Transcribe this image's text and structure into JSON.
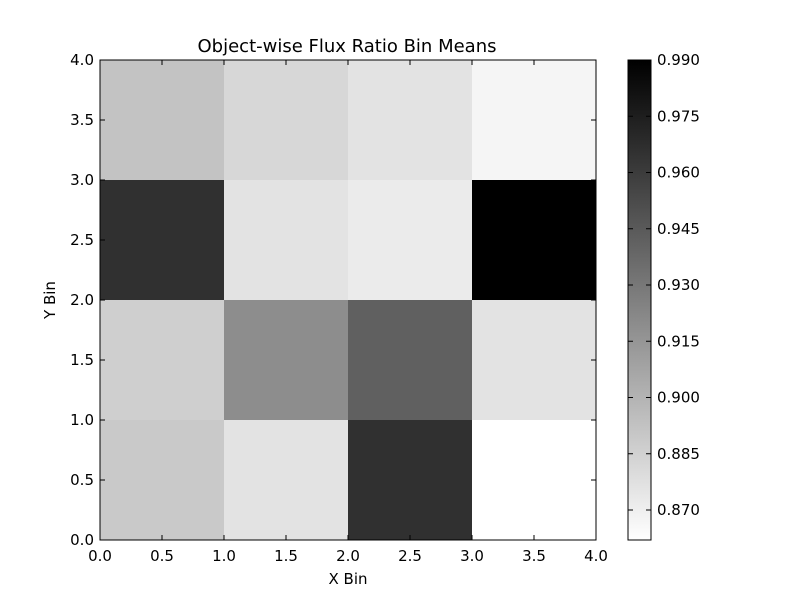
{
  "chart_data": {
    "type": "heatmap",
    "title": "Object-wise Flux Ratio Bin Means",
    "xlabel": "X Bin",
    "ylabel": "Y Bin",
    "xlim": [
      0.0,
      4.0
    ],
    "ylim": [
      0.0,
      4.0
    ],
    "x_ticks": [
      "0.0",
      "0.5",
      "1.0",
      "1.5",
      "2.0",
      "2.5",
      "3.0",
      "3.5",
      "4.0"
    ],
    "y_ticks": [
      "0.0",
      "0.5",
      "1.0",
      "1.5",
      "2.0",
      "2.5",
      "3.0",
      "3.5",
      "4.0"
    ],
    "x_bins": [
      0.5,
      1.5,
      2.5,
      3.5
    ],
    "y_bins": [
      0.5,
      1.5,
      2.5,
      3.5
    ],
    "values": [
      [
        0.889,
        0.876,
        0.966,
        0.862
      ],
      [
        0.886,
        0.919,
        0.942,
        0.876
      ],
      [
        0.966,
        0.876,
        0.872,
        0.99
      ],
      [
        0.892,
        0.882,
        0.876,
        0.867
      ]
    ],
    "colormap": "gray_r",
    "colorbar": {
      "vmin": 0.862,
      "vmax": 0.99,
      "ticks": [
        0.87,
        0.885,
        0.9,
        0.915,
        0.93,
        0.945,
        0.96,
        0.975,
        0.99
      ],
      "tick_labels": [
        "0.870",
        "0.885",
        "0.900",
        "0.915",
        "0.930",
        "0.945",
        "0.960",
        "0.975",
        "0.990"
      ]
    },
    "grid": false
  }
}
